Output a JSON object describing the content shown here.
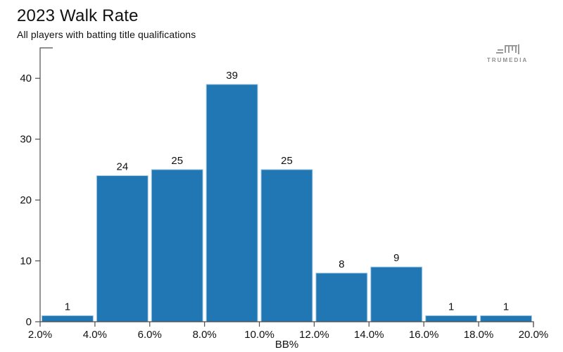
{
  "header": {
    "title": "2023 Walk Rate",
    "subtitle": "All players with batting title qualifications"
  },
  "logo": {
    "text": "TRUMEDIA",
    "color": "#8f8f8f"
  },
  "chart_data": {
    "type": "bar",
    "subtype": "histogram",
    "title": "2023 Walk Rate",
    "subtitle": "All players with batting title qualifications",
    "xlabel": "BB%",
    "ylabel": "",
    "bin_edges_pct": [
      2.0,
      4.0,
      6.0,
      8.0,
      10.0,
      12.0,
      14.0,
      16.0,
      18.0,
      20.0
    ],
    "categories": [
      "2.0-4.0%",
      "4.0-6.0%",
      "6.0-8.0%",
      "8.0-10.0%",
      "10.0-12.0%",
      "12.0-14.0%",
      "14.0-16.0%",
      "16.0-18.0%",
      "18.0-20.0%"
    ],
    "values": [
      1,
      24,
      25,
      39,
      25,
      8,
      9,
      1,
      1
    ],
    "x_tick_labels": [
      "2.0%",
      "4.0%",
      "6.0%",
      "8.0%",
      "10.0%",
      "12.0%",
      "14.0%",
      "16.0%",
      "18.0%",
      "20.0%"
    ],
    "yticks": [
      0,
      10,
      20,
      30,
      40
    ],
    "ylim": [
      0,
      45
    ],
    "grid": false,
    "legend": false,
    "bar_color": "#2177b4",
    "bar_edge_color": "#a8cbe2",
    "axis_color": "#4d4d4d",
    "label_color": "#111111"
  }
}
